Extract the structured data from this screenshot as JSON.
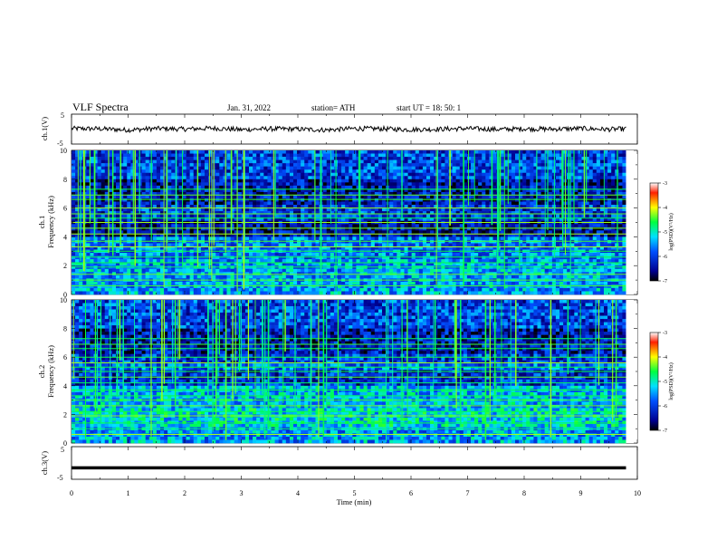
{
  "header": {
    "title": "VLF  Spectra",
    "date": "Jan. 31, 2022",
    "station": "station= ATH",
    "start_ut": "start  UT  =   18: 50: 1"
  },
  "chart_data": [
    {
      "type": "line",
      "name": "ch1-waveform",
      "ylabel": "ch.1(V)",
      "ylim": [
        -5,
        5
      ],
      "yticks": [
        "5",
        "-5"
      ],
      "xlim": [
        0,
        10
      ],
      "x": [
        0,
        0.5,
        1,
        1.5,
        2,
        2.5,
        3,
        3.5,
        4,
        4.5,
        5,
        5.5,
        6,
        6.5,
        7,
        7.5,
        8,
        8.5,
        9,
        9.5,
        9.8
      ],
      "y": [
        0.2,
        0.1,
        -0.3,
        0.2,
        0.0,
        0.3,
        -0.2,
        0.1,
        0.0,
        -0.3,
        0.2,
        0.1,
        -0.2,
        0.0,
        0.2,
        -0.1,
        0.1,
        0.0,
        0.2,
        -0.1,
        0.1
      ]
    },
    {
      "type": "heatmap",
      "name": "ch1-spectrogram",
      "ylabel_line1": "ch.1",
      "ylabel_line2": "Frequency  (kHz)",
      "ylim": [
        0,
        10
      ],
      "yticks": [
        "0",
        "2",
        "4",
        "6",
        "8",
        "10"
      ],
      "xlim": [
        0,
        9.8
      ],
      "colorbar": {
        "label": "log(PSD)(V²/Hz)",
        "range": [
          -7,
          -3
        ],
        "ticks": [
          "-3",
          "-4",
          "-5",
          "-6",
          "-7"
        ]
      }
    },
    {
      "type": "heatmap",
      "name": "ch2-spectrogram",
      "ylabel_line1": "ch.2",
      "ylabel_line2": "Frequency  (kHz)",
      "ylim": [
        0,
        10
      ],
      "yticks": [
        "0",
        "2",
        "4",
        "6",
        "8",
        "10"
      ],
      "xlim": [
        0,
        9.8
      ],
      "colorbar": {
        "label": "log(PSD)(V²/Hz)",
        "range": [
          -7,
          -3
        ],
        "ticks": [
          "-3",
          "-4",
          "-5",
          "-6",
          "-7"
        ]
      }
    },
    {
      "type": "line",
      "name": "ch3-waveform",
      "ylabel": "ch.3(V)",
      "ylim": [
        -5,
        5
      ],
      "yticks": [
        "5",
        "-5"
      ],
      "xlim": [
        0,
        10
      ],
      "x": [
        0,
        9.8
      ],
      "y": [
        -1.5,
        -1.5
      ]
    }
  ],
  "xaxis": {
    "label": "Time  (min)",
    "ticks": [
      "0",
      "1",
      "2",
      "3",
      "4",
      "5",
      "6",
      "7",
      "8",
      "9",
      "10"
    ]
  }
}
